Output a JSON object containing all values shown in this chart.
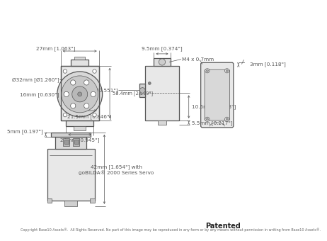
{
  "bg_color": "#ffffff",
  "line_color": "#555555",
  "dim_color": "#555555",
  "text_color": "#333333",
  "patented_text": "Patented",
  "copyright_text": "Copyright Base10 Assets®.  All Rights Reserved. No part of this image may be reproduced in any form or by any means without permission in writing from Base10 Assets®.",
  "dims": {
    "27mm": "27mm [1.063\"]",
    "32mm": "Ø32mm [Ø1.260\"]",
    "16mm": "16mm [0.630\"]",
    "215mm": "21.5mm [0.846\"]",
    "24mm": "24mm [0.945\"]",
    "584mm": "58.4mm [2.299\"]",
    "95mm": "9.5mm [0.374\"]",
    "m4": "M4 x 0.7mm",
    "14mm": "Ø14mm [Ø0.551\"]",
    "105mm": "10.5mm [0.413\"]",
    "55mm": "5.5mm [0.217\"]",
    "3mm": "3mm [0.118\"]",
    "5mm": "5mm [0.197\"]",
    "42mm_line1": "42mm [1.654\"] with",
    "42mm_line2": "goBILDA® 2000 Series Servo"
  }
}
